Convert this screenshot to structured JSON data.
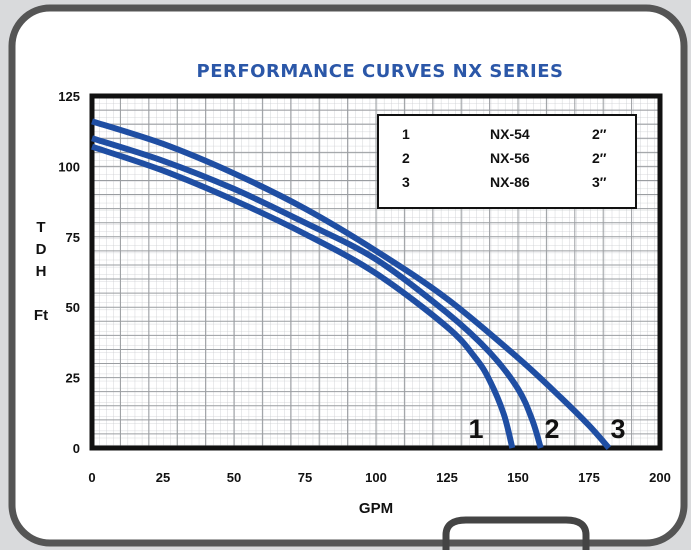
{
  "chart_data": {
    "type": "line",
    "title": "PERFORMANCE CURVES NX SERIES",
    "xlabel": "GPM",
    "ylabel_lines": [
      "T",
      "D",
      "H",
      "Ft"
    ],
    "xlim": [
      0,
      200
    ],
    "ylim": [
      0,
      125
    ],
    "x_ticks": [
      "0",
      "25",
      "50",
      "75",
      "100",
      "125",
      "150",
      "175",
      "200"
    ],
    "y_ticks": [
      "0",
      "25",
      "50",
      "75",
      "100",
      "125"
    ],
    "grid": true,
    "line_color": "#1f4ea3",
    "title_color": "#2b57a8",
    "legend_position": "top-right",
    "legend": [
      {
        "num": "1",
        "model": "NX-54",
        "size": "2″"
      },
      {
        "num": "2",
        "model": "NX-56",
        "size": "2″"
      },
      {
        "num": "3",
        "model": "NX-86",
        "size": "3″"
      }
    ],
    "series": [
      {
        "label": "1",
        "x": [
          0,
          25,
          50,
          75,
          100,
          125,
          135,
          140,
          145,
          148
        ],
        "y": [
          107,
          98.5,
          88,
          76,
          62,
          43,
          32,
          24,
          12,
          0
        ]
      },
      {
        "label": "2",
        "x": [
          0,
          25,
          50,
          75,
          100,
          125,
          140,
          150,
          155,
          158
        ],
        "y": [
          110,
          102,
          92,
          80,
          67,
          48,
          34,
          21,
          10,
          0
        ]
      },
      {
        "label": "3",
        "x": [
          0,
          25,
          50,
          75,
          100,
          125,
          150,
          165,
          175,
          182
        ],
        "y": [
          116,
          108,
          97.5,
          85,
          70,
          53,
          32,
          18,
          8,
          0
        ]
      }
    ]
  }
}
